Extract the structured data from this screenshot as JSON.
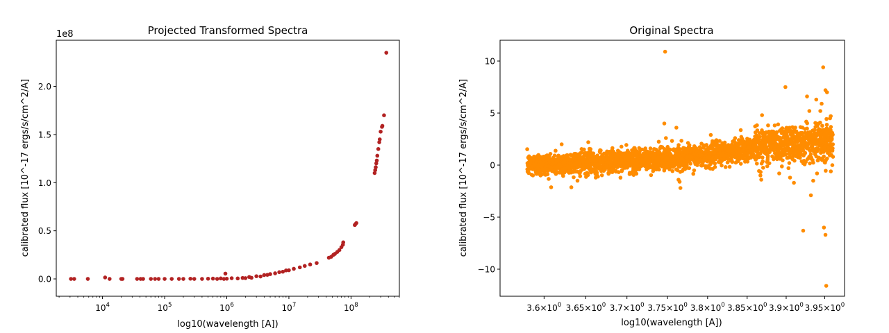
{
  "chart_data": [
    {
      "type": "scatter",
      "title": "Projected Transformed Spectra",
      "xlabel": "log10(wavelength [A])",
      "ylabel": "calibrated flux [10^-17 ergs/s/cm^2/A]",
      "x_scale": "log",
      "xlim": [
        1800,
        600000000
      ],
      "ylim": [
        -18000000,
        248000000
      ],
      "y_offset_label": "1e8",
      "x_ticks": [
        {
          "value": 10000,
          "label": "10^4"
        },
        {
          "value": 100000,
          "label": "10^5"
        },
        {
          "value": 1000000,
          "label": "10^6"
        },
        {
          "value": 10000000,
          "label": "10^7"
        },
        {
          "value": 100000000,
          "label": "10^8"
        }
      ],
      "y_ticks": [
        {
          "value": 0,
          "label": "0.0"
        },
        {
          "value": 50000000,
          "label": "0.5"
        },
        {
          "value": 100000000,
          "label": "1.0"
        },
        {
          "value": 150000000,
          "label": "1.5"
        },
        {
          "value": 200000000,
          "label": "2.0"
        }
      ],
      "color": "#b22222",
      "grid": false,
      "series": [
        {
          "points": [
            [
              3100,
              0
            ],
            [
              3500,
              0
            ],
            [
              5800,
              0
            ],
            [
              11000,
              1500000
            ],
            [
              13000,
              0
            ],
            [
              20000,
              0
            ],
            [
              21000,
              0
            ],
            [
              36000,
              0
            ],
            [
              41000,
              0
            ],
            [
              45000,
              0
            ],
            [
              60000,
              0
            ],
            [
              70000,
              0
            ],
            [
              80000,
              0
            ],
            [
              100000,
              0
            ],
            [
              130000,
              0
            ],
            [
              170000,
              0
            ],
            [
              200000,
              0
            ],
            [
              260000,
              200000
            ],
            [
              300000,
              0
            ],
            [
              400000,
              0
            ],
            [
              500000,
              200000
            ],
            [
              600000,
              300000
            ],
            [
              700000,
              0
            ],
            [
              800000,
              500000
            ],
            [
              900000,
              0
            ],
            [
              950000,
              5500000
            ],
            [
              1000000,
              200000
            ],
            [
              1200000,
              700000
            ],
            [
              1500000,
              500000
            ],
            [
              1800000,
              1000000
            ],
            [
              2000000,
              800000
            ],
            [
              2300000,
              2000000
            ],
            [
              2500000,
              1200000
            ],
            [
              3000000,
              2800000
            ],
            [
              3500000,
              2500000
            ],
            [
              4000000,
              4000000
            ],
            [
              4500000,
              4200000
            ],
            [
              5000000,
              5000000
            ],
            [
              6000000,
              5800000
            ],
            [
              7000000,
              7000000
            ],
            [
              8000000,
              7500000
            ],
            [
              9000000,
              8800000
            ],
            [
              10000000,
              9000000
            ],
            [
              12000000,
              10500000
            ],
            [
              15000000,
              12000000
            ],
            [
              18000000,
              13500000
            ],
            [
              22000000,
              15000000
            ],
            [
              28000000,
              16500000
            ],
            [
              44000000,
              22000000
            ],
            [
              48000000,
              23000000
            ],
            [
              52000000,
              25000000
            ],
            [
              55000000,
              26000000
            ],
            [
              60000000,
              28000000
            ],
            [
              65000000,
              30000000
            ],
            [
              70000000,
              33000000
            ],
            [
              74000000,
              35500000
            ],
            [
              75000000,
              38000000
            ],
            [
              115000000,
              56000000
            ],
            [
              118000000,
              57000000
            ],
            [
              122000000,
              58000000
            ],
            [
              240000000,
              110000000
            ],
            [
              245000000,
              113000000
            ],
            [
              250000000,
              116000000
            ],
            [
              255000000,
              120000000
            ],
            [
              260000000,
              123000000
            ],
            [
              265000000,
              128000000
            ],
            [
              275000000,
              135000000
            ],
            [
              285000000,
              142000000
            ],
            [
              290000000,
              145000000
            ],
            [
              300000000,
              153000000
            ],
            [
              315000000,
              158000000
            ],
            [
              320000000,
              159000000
            ],
            [
              340000000,
              170000000
            ],
            [
              370000000,
              235000000
            ]
          ]
        }
      ]
    },
    {
      "type": "scatter",
      "title": "Original Spectra",
      "xlabel": "log10(wavelength [A])",
      "ylabel": "calibrated flux [10^-17 ergs/s/cm^2/A]",
      "x_scale": "log",
      "xlim": [
        3.548,
        3.976
      ],
      "ylim": [
        -12.6,
        12.0
      ],
      "x_ticks": [
        {
          "value": 3.6,
          "label": "3.6×10^0"
        },
        {
          "value": 3.65,
          "label": "3.65×10^0"
        },
        {
          "value": 3.7,
          "label": "3.7×10^0"
        },
        {
          "value": 3.75,
          "label": "3.75×10^0"
        },
        {
          "value": 3.8,
          "label": "3.8×10^0"
        },
        {
          "value": 3.85,
          "label": "3.85×10^0"
        },
        {
          "value": 3.9,
          "label": "3.9×10^0"
        },
        {
          "value": 3.95,
          "label": "3.95×10^0"
        }
      ],
      "y_ticks": [
        {
          "value": -10,
          "label": "−10"
        },
        {
          "value": -5,
          "label": "−5"
        },
        {
          "value": 0,
          "label": "0"
        },
        {
          "value": 5,
          "label": "5"
        },
        {
          "value": 10,
          "label": "10"
        }
      ],
      "color": "#ff8c00",
      "grid": false,
      "series": [
        {
          "x_range": [
            3.58,
            3.961
          ],
          "trend": [
            [
              3.58,
              0.0
            ],
            [
              3.7,
              0.4
            ],
            [
              3.8,
              0.9
            ],
            [
              3.88,
              2.0
            ],
            [
              3.961,
              2.4
            ]
          ],
          "points": [
            [
              3.747,
              10.9
            ],
            [
              3.746,
              4.0
            ],
            [
              3.761,
              3.6
            ],
            [
              3.748,
              2.6
            ],
            [
              3.765,
              -1.6
            ],
            [
              3.766,
              -2.2
            ],
            [
              3.804,
              2.9
            ],
            [
              3.869,
              4.8
            ],
            [
              3.899,
              7.5
            ],
            [
              3.927,
              6.6
            ],
            [
              3.93,
              5.2
            ],
            [
              3.939,
              6.3
            ],
            [
              3.942,
              4.0
            ],
            [
              3.948,
              9.4
            ],
            [
              3.951,
              7.2
            ],
            [
              3.953,
              7.0
            ],
            [
              3.946,
              5.9
            ],
            [
              3.957,
              4.5
            ],
            [
              3.932,
              -2.9
            ],
            [
              3.922,
              -6.3
            ],
            [
              3.949,
              -6.0
            ],
            [
              3.951,
              -6.7
            ],
            [
              3.952,
              -11.6
            ],
            [
              3.868,
              -1.4
            ],
            [
              3.891,
              -0.8
            ],
            [
              3.905,
              -1.2
            ],
            [
              3.91,
              -1.7
            ],
            [
              3.935,
              -1.5
            ],
            [
              3.94,
              -0.8
            ],
            [
              3.958,
              -0.6
            ],
            [
              3.621,
              2.0
            ],
            [
              3.653,
              2.2
            ],
            [
              3.64,
              -1.5
            ],
            [
              3.662,
              -1.2
            ]
          ]
        }
      ]
    }
  ]
}
